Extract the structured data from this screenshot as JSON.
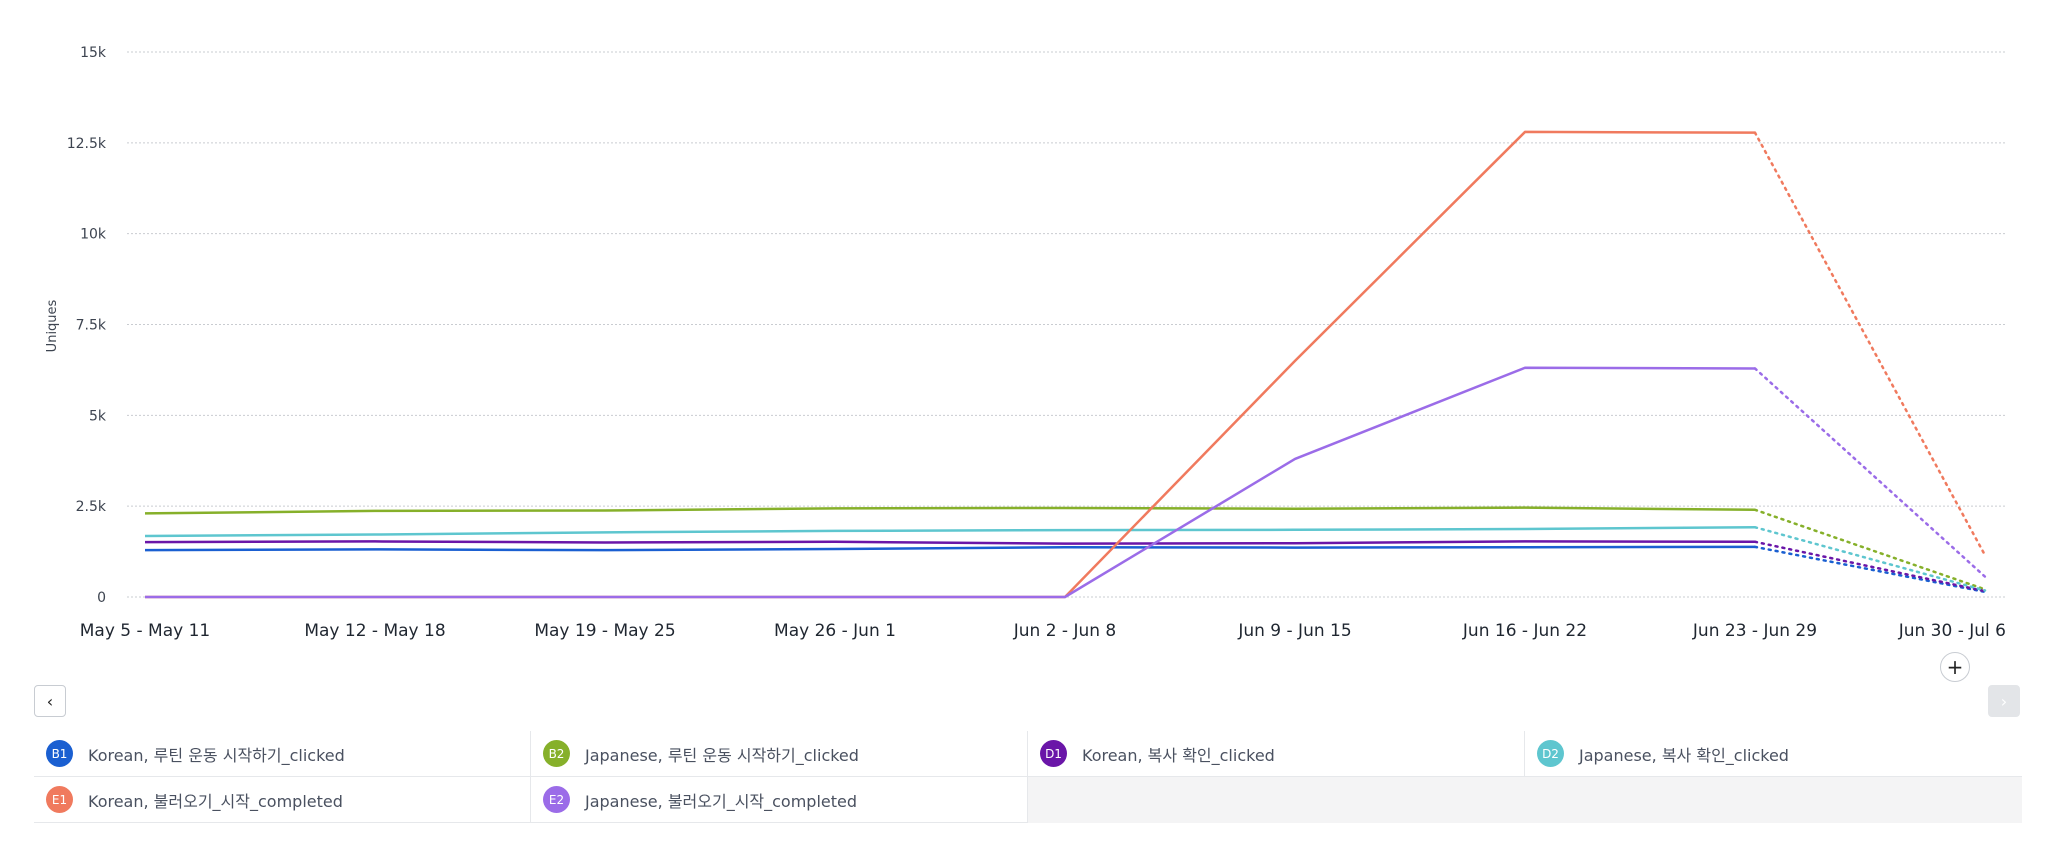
{
  "chart_data": {
    "type": "line",
    "ylabel": "Uniques",
    "ylim": [
      0,
      15000
    ],
    "yticks": [
      {
        "value": 0,
        "label": "0"
      },
      {
        "value": 2500,
        "label": "2.5k"
      },
      {
        "value": 5000,
        "label": "5k"
      },
      {
        "value": 7500,
        "label": "7.5k"
      },
      {
        "value": 10000,
        "label": "10k"
      },
      {
        "value": 12500,
        "label": "12.5k"
      },
      {
        "value": 15000,
        "label": "15k"
      }
    ],
    "categories": [
      "May 5 - May 11",
      "May 12 - May 18",
      "May 19 - May 25",
      "May 26 - Jun 1",
      "Jun 2 - Jun 8",
      "Jun 9 - Jun 15",
      "Jun 16 - Jun 22",
      "Jun 23 - Jun 29",
      "Jun 30 - Jul 6"
    ],
    "incomplete_from_index": 7,
    "grid": true,
    "legend_position": "bottom",
    "series": [
      {
        "id": "B1",
        "name": "Korean, 루틴 운동 시작하기_clicked",
        "color": "#1a5fd1",
        "values": [
          1290,
          1310,
          1290,
          1320,
          1370,
          1360,
          1370,
          1380,
          140
        ]
      },
      {
        "id": "B2",
        "name": "Japanese, 루틴 운동 시작하기_clicked",
        "color": "#86b02a",
        "values": [
          2300,
          2370,
          2380,
          2440,
          2450,
          2430,
          2460,
          2400,
          210
        ]
      },
      {
        "id": "D1",
        "name": "Korean, 복사 확인_clicked",
        "color": "#6a16a8",
        "values": [
          1510,
          1530,
          1500,
          1520,
          1470,
          1480,
          1530,
          1520,
          160
        ]
      },
      {
        "id": "D2",
        "name": "Japanese, 복사 확인_clicked",
        "color": "#5ec6cf",
        "values": [
          1680,
          1720,
          1780,
          1820,
          1840,
          1850,
          1870,
          1920,
          180
        ]
      },
      {
        "id": "E1",
        "name": "Korean, 불러오기_시작_completed",
        "color": "#f07a5e",
        "values": [
          0,
          0,
          0,
          0,
          0,
          6500,
          12800,
          12780,
          1150
        ]
      },
      {
        "id": "E2",
        "name": "Japanese, 불러오기_시작_completed",
        "color": "#9b6ce8",
        "values": [
          0,
          0,
          0,
          0,
          0,
          3800,
          6310,
          6290,
          560
        ]
      }
    ]
  },
  "controls": {
    "prev_icon": "‹",
    "next_icon": "›",
    "add_icon": "+"
  }
}
